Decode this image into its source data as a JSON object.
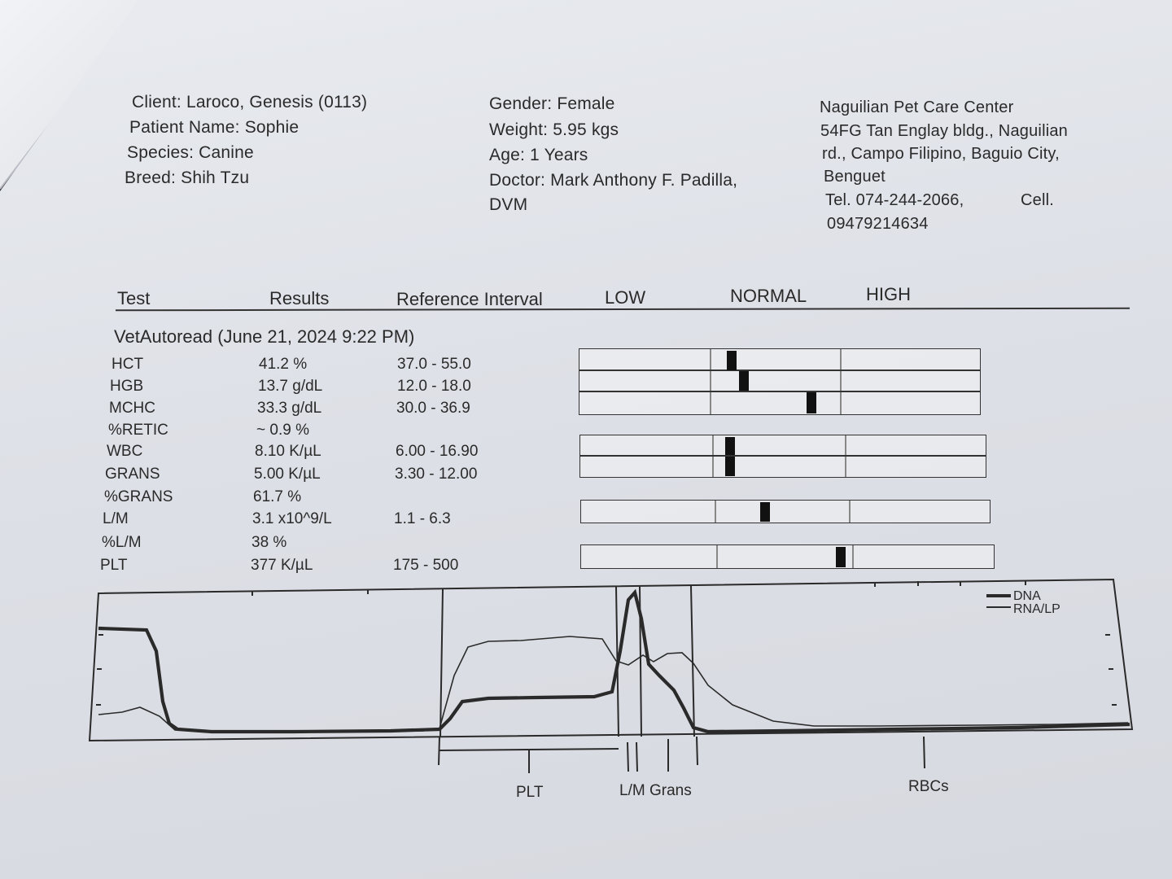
{
  "client": {
    "client_line": "Client: Laroco, Genesis (0113)",
    "patient_line": "Patient Name: Sophie",
    "species_line": "Species: Canine",
    "breed_line": "Breed: Shih Tzu"
  },
  "patient": {
    "gender_line": "Gender: Female",
    "weight_line": "Weight: 5.95 kgs",
    "age_line": "Age: 1 Years",
    "doctor_line": "Doctor: Mark Anthony F. Padilla,",
    "doctor_line2": "DVM"
  },
  "clinic": {
    "name": "Naguilian Pet Care Center",
    "address1": "54FG Tan Englay bldg., Naguilian",
    "address2": "rd., Campo Filipino, Baguio City,",
    "address3": "Benguet",
    "tel": "Tel. 074-244-2066,",
    "cell_label": "Cell.",
    "cell": "09479214634"
  },
  "table_header": {
    "test": "Test",
    "results": "Results",
    "reference": "Reference Interval",
    "low": "LOW",
    "normal": "NORMAL",
    "high": "HIGH"
  },
  "run_title": "VetAutoread (June 21, 2024 9:22 PM)",
  "tests": [
    {
      "name": "HCT",
      "result": "41.2 %",
      "reference": "37.0 - 55.0",
      "level": 0.38
    },
    {
      "name": "HGB",
      "result": "13.7 g/dL",
      "reference": "12.0 - 18.0",
      "level": 0.41
    },
    {
      "name": "MCHC",
      "result": "33.3 g/dL",
      "reference": "30.0 - 36.9",
      "level": 0.58
    },
    {
      "name": "%RETIC",
      "result": "~ 0.9 %",
      "reference": "",
      "level": null
    },
    {
      "name": "WBC",
      "result": "8.10 K/µL",
      "reference": "6.00 - 16.90",
      "level": 0.37
    },
    {
      "name": "GRANS",
      "result": "5.00 K/µL",
      "reference": "3.30 - 12.00",
      "level": 0.37
    },
    {
      "name": "%GRANS",
      "result": "61.7 %",
      "reference": "",
      "level": null
    },
    {
      "name": "L/M",
      "result": "3.1 x10^9/L",
      "reference": "1.1 - 6.3",
      "level": 0.45
    },
    {
      "name": "%L/M",
      "result": "38 %",
      "reference": "",
      "level": null
    },
    {
      "name": "PLT",
      "result": "377 K/µL",
      "reference": "175 - 500",
      "level": 0.63
    }
  ],
  "histogram": {
    "legend": [
      "DNA",
      "RNA/LP"
    ],
    "regions": [
      "PLT",
      "L/M",
      "Grans",
      "RBCs"
    ]
  }
}
